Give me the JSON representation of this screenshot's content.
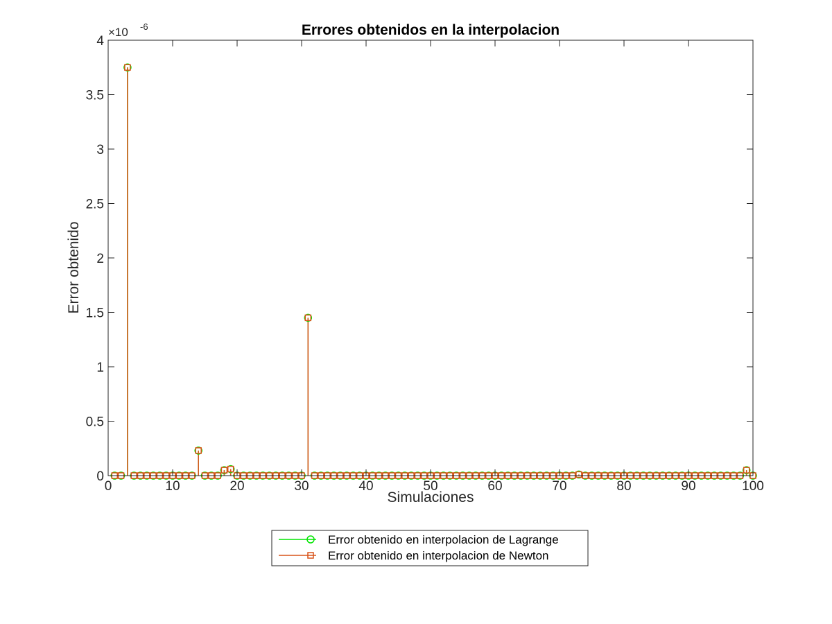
{
  "chart_data": {
    "type": "stem",
    "title": "Errores obtenidos en la interpolacion",
    "xlabel": "Simulaciones",
    "ylabel": "Error obtenido",
    "xlim": [
      0,
      100
    ],
    "ylim": [
      0,
      4
    ],
    "y_exponent_label": {
      "base": "×10",
      "exponent": "-6"
    },
    "xticks": [
      0,
      10,
      20,
      30,
      40,
      50,
      60,
      70,
      80,
      90,
      100
    ],
    "xtick_labels": [
      "0",
      "10",
      "20",
      "30",
      "40",
      "50",
      "60",
      "70",
      "80",
      "90",
      "100"
    ],
    "yticks": [
      0,
      0.5,
      1,
      1.5,
      2,
      2.5,
      3,
      3.5,
      4
    ],
    "ytick_labels": [
      "0",
      "0.5",
      "1",
      "1.5",
      "2",
      "2.5",
      "3",
      "3.5",
      "4"
    ],
    "grid": false,
    "legend_position": "bottom-center-outside",
    "x": [
      1,
      2,
      3,
      4,
      5,
      6,
      7,
      8,
      9,
      10,
      11,
      12,
      13,
      14,
      15,
      16,
      17,
      18,
      19,
      20,
      21,
      22,
      23,
      24,
      25,
      26,
      27,
      28,
      29,
      30,
      31,
      32,
      33,
      34,
      35,
      36,
      37,
      38,
      39,
      40,
      41,
      42,
      43,
      44,
      45,
      46,
      47,
      48,
      49,
      50,
      51,
      52,
      53,
      54,
      55,
      56,
      57,
      58,
      59,
      60,
      61,
      62,
      63,
      64,
      65,
      66,
      67,
      68,
      69,
      70,
      71,
      72,
      73,
      74,
      75,
      76,
      77,
      78,
      79,
      80,
      81,
      82,
      83,
      84,
      85,
      86,
      87,
      88,
      89,
      90,
      91,
      92,
      93,
      94,
      95,
      96,
      97,
      98,
      99,
      100
    ],
    "series": [
      {
        "name": "Error obtenido en interpolacion de Lagrange",
        "color": "#00e600",
        "marker": "circle",
        "values": [
          0,
          0,
          3.75,
          0,
          0,
          0,
          0,
          0,
          0,
          0,
          0,
          0,
          0,
          0.23,
          0,
          0,
          0,
          0.05,
          0.06,
          0,
          0,
          0,
          0,
          0,
          0,
          0,
          0,
          0,
          0,
          0,
          1.45,
          0,
          0,
          0,
          0,
          0,
          0,
          0,
          0,
          0,
          0,
          0,
          0,
          0,
          0,
          0,
          0,
          0,
          0,
          0,
          0,
          0,
          0,
          0,
          0,
          0,
          0,
          0,
          0,
          0,
          0,
          0,
          0,
          0,
          0,
          0,
          0,
          0,
          0,
          0,
          0,
          0,
          0.01,
          0,
          0,
          0,
          0,
          0,
          0,
          0,
          0,
          0,
          0,
          0,
          0,
          0,
          0,
          0,
          0,
          0,
          0,
          0,
          0,
          0,
          0,
          0,
          0,
          0,
          0.05,
          0
        ]
      },
      {
        "name": "Error obtenido en interpolacion de Newton",
        "color": "#d95319",
        "marker": "square",
        "values": [
          0,
          0,
          3.75,
          0,
          0,
          0,
          0,
          0,
          0,
          0,
          0,
          0,
          0,
          0.23,
          0,
          0,
          0,
          0.05,
          0.06,
          0,
          0,
          0,
          0,
          0,
          0,
          0,
          0,
          0,
          0,
          0,
          1.45,
          0,
          0,
          0,
          0,
          0,
          0,
          0,
          0,
          0,
          0,
          0,
          0,
          0,
          0,
          0,
          0,
          0,
          0,
          0,
          0,
          0,
          0,
          0,
          0,
          0,
          0,
          0,
          0,
          0,
          0,
          0,
          0,
          0,
          0,
          0,
          0,
          0,
          0,
          0,
          0,
          0,
          0.01,
          0,
          0,
          0,
          0,
          0,
          0,
          0,
          0,
          0,
          0,
          0,
          0,
          0,
          0,
          0,
          0,
          0,
          0,
          0,
          0,
          0,
          0,
          0,
          0,
          0,
          0.05,
          0
        ]
      }
    ]
  }
}
